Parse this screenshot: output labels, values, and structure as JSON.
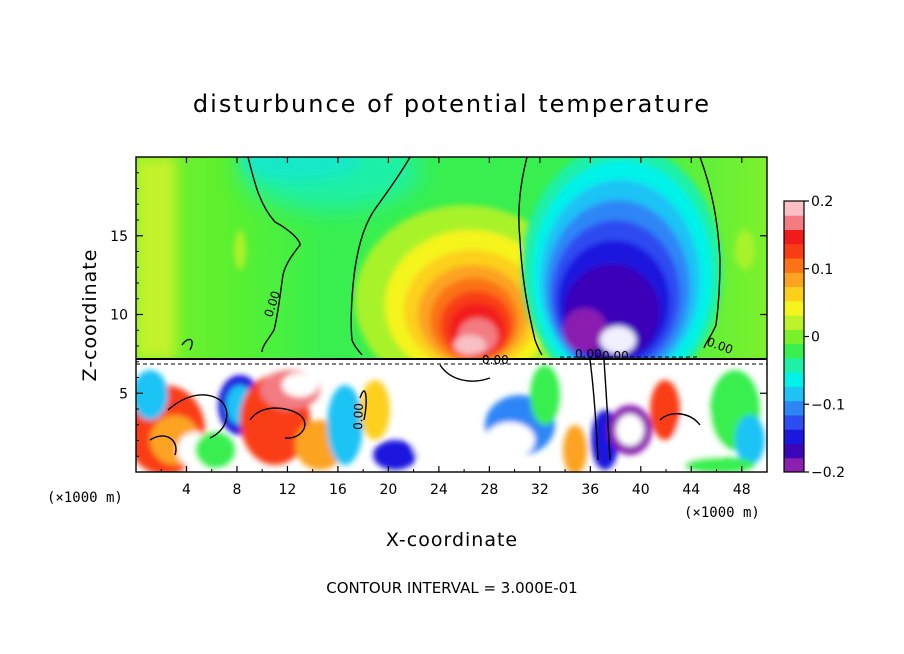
{
  "chart_data": {
    "type": "heatmap",
    "title": "disturbunce of potential temperature",
    "xlabel": "X-coordinate",
    "ylabel": "Z-coordinate",
    "x_unit": "(×1000 m)",
    "x_unit_right": "(×1000 m)",
    "xlim": [
      0,
      50
    ],
    "ylim": [
      0,
      20
    ],
    "x_ticks": [
      4,
      8,
      12,
      16,
      20,
      24,
      28,
      32,
      36,
      40,
      44,
      48
    ],
    "y_ticks": [
      5,
      10,
      15
    ],
    "colorbar": {
      "range": [
        -0.2,
        0.2
      ],
      "tick_labels": [
        "0.2",
        "0.1",
        "0",
        "−0.1",
        "−0.2"
      ],
      "tick_values": [
        0.2,
        0.1,
        0,
        -0.1,
        -0.2
      ],
      "colors": [
        "#8a1fb0",
        "#3a06b8",
        "#1c17df",
        "#2d4cf2",
        "#2e86f6",
        "#1fc3f5",
        "#00f2e9",
        "#1ff0a8",
        "#38ef4f",
        "#78f12a",
        "#bdf22a",
        "#f5f41c",
        "#fcd01a",
        "#fca321",
        "#fb7217",
        "#f93c16",
        "#f21b1b",
        "#f27c82",
        "#f8c0c4"
      ]
    },
    "contour_labels": [
      "0.00",
      "0.00",
      "0.00",
      "0.00",
      "0.00",
      "0.00"
    ],
    "upper_features": [
      {
        "name": "warm-anomaly",
        "x": 28,
        "z": 9,
        "value": 0.2
      },
      {
        "name": "cold-anomaly",
        "x": 38,
        "z": 9.5,
        "value": -0.2
      }
    ],
    "boundary_height": 7.2,
    "footer": "CONTOUR INTERVAL = 3.000E-01"
  }
}
